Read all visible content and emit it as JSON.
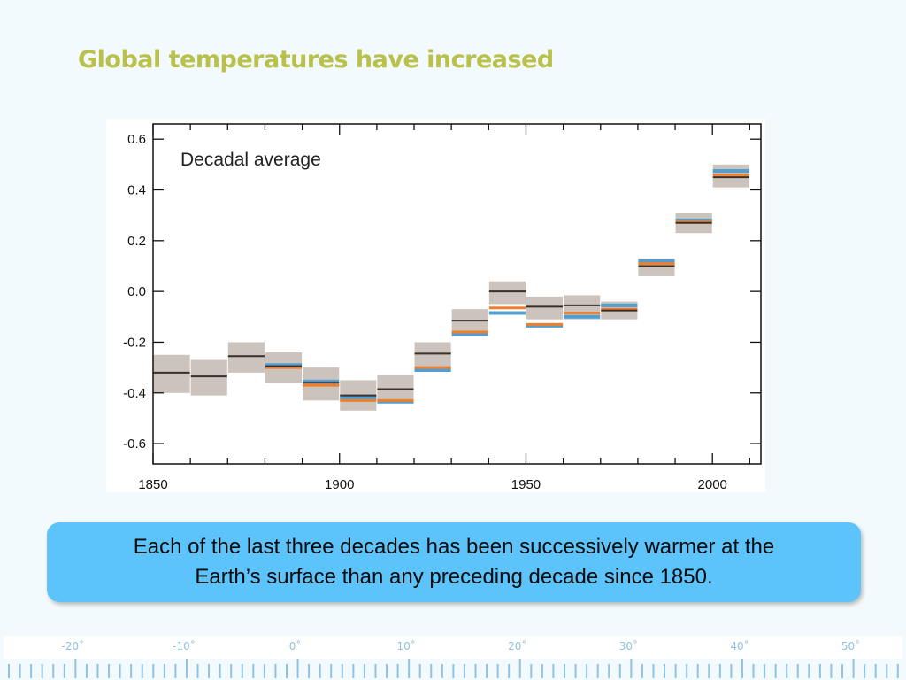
{
  "slide": {
    "title": "Global temperatures have increased",
    "caption": "Each of the last three decades has been successively warmer at the Earth’s surface than any preceding decade since 1850."
  },
  "colors": {
    "title": "#b9c14a",
    "caption_box": "#5cc3fb",
    "band": "#cdc3bd",
    "mean": "#3a2f2a",
    "orange": "#f07f2c",
    "blue": "#4f9fd4",
    "ruler": "#8fc3df"
  },
  "chart_data": {
    "type": "bar",
    "title": "Decadal average",
    "xlabel": "",
    "ylabel": "",
    "xlim": [
      1850,
      2013
    ],
    "ylim": [
      -0.68,
      0.66
    ],
    "x_ticks": [
      1850,
      1900,
      1950,
      2000
    ],
    "x_tick_labels": [
      "1850",
      "1900",
      "1950",
      "2000"
    ],
    "y_ticks": [
      0.6,
      0.4,
      0.2,
      0.0,
      -0.2,
      -0.4,
      -0.6
    ],
    "y_tick_labels": [
      "0.6",
      "0.4",
      "0.2",
      "0.0",
      "-0.2",
      "-0.4",
      "-0.6"
    ],
    "grid": false,
    "decades": [
      {
        "start": 1850,
        "mean": -0.32,
        "low": -0.4,
        "high": -0.25,
        "orange": null,
        "blue": null
      },
      {
        "start": 1860,
        "mean": -0.335,
        "low": -0.41,
        "high": -0.27,
        "orange": null,
        "blue": null
      },
      {
        "start": 1870,
        "mean": -0.255,
        "low": -0.32,
        "high": -0.2,
        "orange": null,
        "blue": null
      },
      {
        "start": 1880,
        "mean": -0.295,
        "low": -0.36,
        "high": -0.24,
        "orange": -0.3,
        "blue": -0.29
      },
      {
        "start": 1890,
        "mean": -0.36,
        "low": -0.43,
        "high": -0.3,
        "orange": -0.37,
        "blue": -0.355
      },
      {
        "start": 1900,
        "mean": -0.41,
        "low": -0.47,
        "high": -0.35,
        "orange": -0.43,
        "blue": -0.42
      },
      {
        "start": 1910,
        "mean": -0.385,
        "low": -0.44,
        "high": -0.33,
        "orange": -0.43,
        "blue": -0.435
      },
      {
        "start": 1920,
        "mean": -0.245,
        "low": -0.3,
        "high": -0.2,
        "orange": -0.3,
        "blue": -0.31
      },
      {
        "start": 1930,
        "mean": -0.115,
        "low": -0.17,
        "high": -0.07,
        "orange": -0.16,
        "blue": -0.17
      },
      {
        "start": 1940,
        "mean": 0.0,
        "low": -0.05,
        "high": 0.04,
        "orange": -0.065,
        "blue": -0.085
      },
      {
        "start": 1950,
        "mean": -0.06,
        "low": -0.11,
        "high": -0.02,
        "orange": -0.13,
        "blue": -0.135
      },
      {
        "start": 1960,
        "mean": -0.055,
        "low": -0.11,
        "high": -0.015,
        "orange": -0.085,
        "blue": -0.1
      },
      {
        "start": 1970,
        "mean": -0.075,
        "low": -0.11,
        "high": -0.04,
        "orange": -0.07,
        "blue": -0.055
      },
      {
        "start": 1980,
        "mean": 0.1,
        "low": 0.06,
        "high": 0.13,
        "orange": 0.11,
        "blue": 0.12
      },
      {
        "start": 1990,
        "mean": 0.27,
        "low": 0.23,
        "high": 0.31,
        "orange": 0.275,
        "blue": 0.28
      },
      {
        "start": 2000,
        "mean": 0.45,
        "low": 0.41,
        "high": 0.5,
        "orange": 0.46,
        "blue": 0.475
      }
    ]
  },
  "ruler": {
    "labels": [
      "-20˚",
      "-10˚",
      "0˚",
      "10˚",
      "20˚",
      "30˚",
      "40˚",
      "50˚"
    ]
  }
}
